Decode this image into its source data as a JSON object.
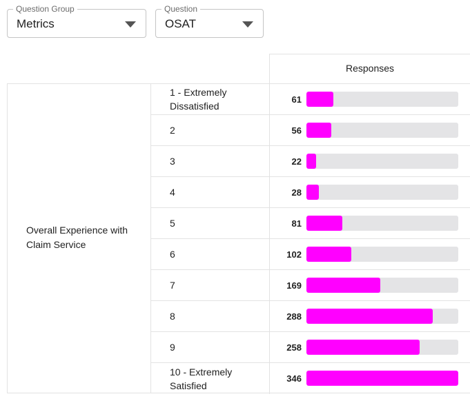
{
  "filters": {
    "question_group": {
      "label": "Question Group",
      "value": "Metrics"
    },
    "question": {
      "label": "Question",
      "value": "OSAT"
    }
  },
  "table": {
    "column_header": "Responses",
    "group_label": "Overall Experience with Claim Service",
    "max_value": 346,
    "bar_color": "#ff00ff",
    "track_color": "#e4e4e6",
    "rows": [
      {
        "label": "1 - Extremely Dissatisfied",
        "value": 61
      },
      {
        "label": "2",
        "value": 56
      },
      {
        "label": "3",
        "value": 22
      },
      {
        "label": "4",
        "value": 28
      },
      {
        "label": "5",
        "value": 81
      },
      {
        "label": "6",
        "value": 102
      },
      {
        "label": "7",
        "value": 169
      },
      {
        "label": "8",
        "value": 288
      },
      {
        "label": "9",
        "value": 258
      },
      {
        "label": "10 - Extremely Satisfied",
        "value": 346
      }
    ]
  }
}
